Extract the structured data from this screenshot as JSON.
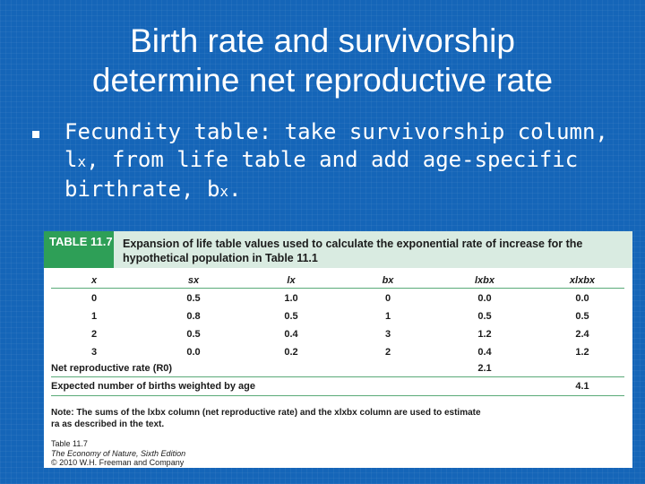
{
  "title": {
    "line1": "Birth rate and survivorship",
    "line2": "determine net reproductive rate"
  },
  "bullet": {
    "part1": "Fecundity table: take survivorship column, l",
    "sub1": "x",
    "part2": ", from life table and add age-specific birthrate, b",
    "sub2": "x",
    "part3": "."
  },
  "table": {
    "label": "TABLE 11.7",
    "caption": "Expansion of life table values used to calculate the exponential rate of increase for the hypothetical population in Table 11.1",
    "headers": [
      "x",
      "sx",
      "lx",
      "bx",
      "lxbx",
      "xlxbx"
    ],
    "rows": [
      [
        "0",
        "0.5",
        "1.0",
        "0",
        "0.0",
        "0.0"
      ],
      [
        "1",
        "0.8",
        "0.5",
        "1",
        "0.5",
        "0.5"
      ],
      [
        "2",
        "0.5",
        "0.4",
        "3",
        "1.2",
        "2.4"
      ],
      [
        "3",
        "0.0",
        "0.2",
        "2",
        "0.4",
        "1.2"
      ]
    ],
    "net_label": "Net reproductive rate (R0)",
    "net_value": "2.1",
    "expected_label": "Expected number of births weighted by age",
    "expected_value": "4.1",
    "note": "Note: The sums of the lxbx column (net reproductive rate) and the xlxbx column are used to estimate ra as described in the text.",
    "source_line1": "Table 11.7",
    "source_line2": "The Economy of Nature, Sixth Edition",
    "source_line3": "© 2010 W.H. Freeman and Company"
  }
}
